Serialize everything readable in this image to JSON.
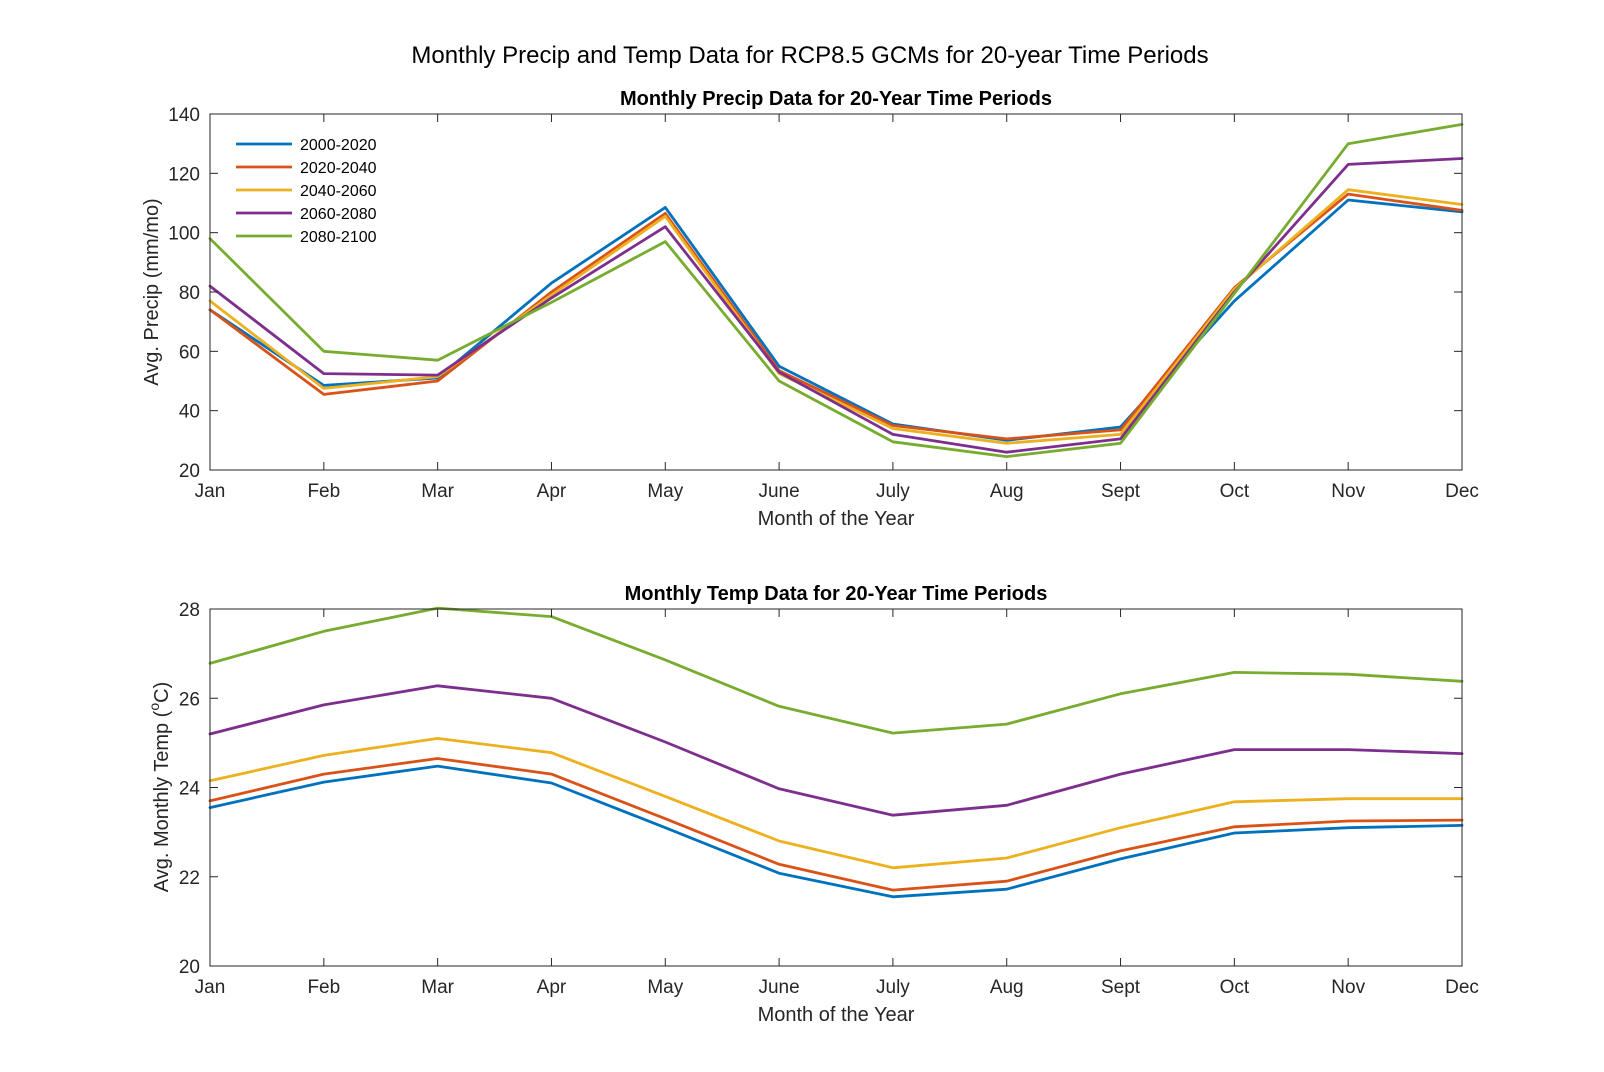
{
  "figure": {
    "title": "Monthly Precip and Temp Data for RCP8.5 GCMs for 20-year Time Periods"
  },
  "chart_data": [
    {
      "type": "line",
      "title": "Monthly Precip Data for 20-Year Time Periods",
      "xlabel": "Month of the Year",
      "ylabel": "Avg. Precip (mm/mo)",
      "categories": [
        "Jan",
        "Feb",
        "Mar",
        "Apr",
        "May",
        "June",
        "July",
        "Aug",
        "Sept",
        "Oct",
        "Nov",
        "Dec"
      ],
      "ylim": [
        20,
        140
      ],
      "yticks": [
        20,
        40,
        60,
        80,
        100,
        120,
        140
      ],
      "grid": false,
      "legend": "top-left",
      "series": [
        {
          "name": "2000-2020",
          "color": "#0072BD",
          "values": [
            74,
            48.5,
            51,
            83,
            108.5,
            55,
            35.5,
            30,
            34.5,
            77,
            111,
            107
          ]
        },
        {
          "name": "2020-2040",
          "color": "#D95319",
          "values": [
            74,
            45.5,
            50,
            80,
            106.5,
            53.5,
            35,
            30.5,
            33.5,
            81.5,
            113,
            107.5
          ]
        },
        {
          "name": "2040-2060",
          "color": "#EDB120",
          "values": [
            77,
            47.5,
            51.5,
            79,
            105.5,
            52.5,
            34,
            29,
            32,
            81,
            114.5,
            109.5
          ]
        },
        {
          "name": "2060-2080",
          "color": "#7E2F8E",
          "values": [
            82,
            52.5,
            52,
            78,
            102,
            53,
            32,
            26,
            30.5,
            80,
            123,
            125
          ]
        },
        {
          "name": "2080-2100",
          "color": "#77AC30",
          "values": [
            98,
            60,
            57,
            76.5,
            97,
            50,
            29.5,
            24.5,
            29,
            79.5,
            130,
            136.5
          ]
        }
      ]
    },
    {
      "type": "line",
      "title": "Monthly Temp Data for 20-Year Time Periods",
      "xlabel": "Month of the Year",
      "ylabel_main": "Avg. Monthly Temp (",
      "ylabel_sup": "o",
      "ylabel_end": "C)",
      "categories": [
        "Jan",
        "Feb",
        "Mar",
        "Apr",
        "May",
        "June",
        "July",
        "Aug",
        "Sept",
        "Oct",
        "Nov",
        "Dec"
      ],
      "ylim": [
        20,
        28
      ],
      "yticks": [
        20,
        22,
        24,
        26,
        28
      ],
      "grid": false,
      "series": [
        {
          "name": "2000-2020",
          "color": "#0072BD",
          "values": [
            23.55,
            24.12,
            24.48,
            24.1,
            23.1,
            22.08,
            21.55,
            21.72,
            22.4,
            22.98,
            23.1,
            23.15
          ]
        },
        {
          "name": "2020-2040",
          "color": "#D95319",
          "values": [
            23.7,
            24.3,
            24.65,
            24.3,
            23.3,
            22.28,
            21.7,
            21.9,
            22.58,
            23.12,
            23.25,
            23.27
          ]
        },
        {
          "name": "2040-2060",
          "color": "#EDB120",
          "values": [
            24.15,
            24.72,
            25.1,
            24.78,
            23.8,
            22.8,
            22.2,
            22.42,
            23.1,
            23.68,
            23.75,
            23.75
          ]
        },
        {
          "name": "2060-2080",
          "color": "#7E2F8E",
          "values": [
            25.2,
            25.85,
            26.28,
            26.0,
            25.02,
            23.97,
            23.38,
            23.6,
            24.3,
            24.85,
            24.85,
            24.76
          ]
        },
        {
          "name": "2080-2100",
          "color": "#77AC30",
          "values": [
            26.78,
            27.5,
            28.02,
            27.83,
            26.86,
            25.82,
            25.22,
            25.42,
            26.1,
            26.58,
            26.54,
            26.38
          ]
        }
      ]
    }
  ]
}
